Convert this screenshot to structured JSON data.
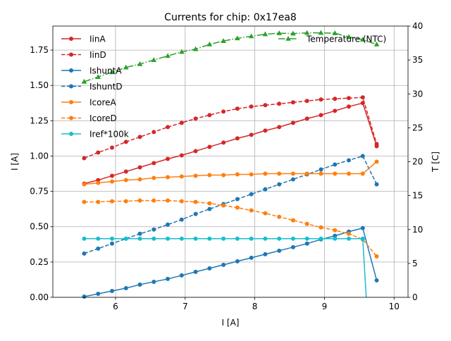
{
  "chart_data": {
    "type": "line",
    "title": "Currents for chip: 0x17ea8",
    "xlabel": "I [A]",
    "ylabel": "I [A]",
    "y2label": "T [C]",
    "xlim": [
      5.1,
      10.2
    ],
    "ylim": [
      0,
      1.92
    ],
    "y2lim": [
      0,
      40
    ],
    "xticks": [
      "6",
      "7",
      "8",
      "9",
      "10"
    ],
    "yticks": [
      "0.00",
      "0.25",
      "0.50",
      "0.75",
      "1.00",
      "1.25",
      "1.50",
      "1.75"
    ],
    "y2ticks": [
      "0",
      "5",
      "10",
      "15",
      "20",
      "25",
      "30",
      "35",
      "40"
    ],
    "grid": true,
    "legend_position": "upper-left",
    "legend2_position": "upper-right",
    "x": [
      5.55,
      5.75,
      5.95,
      6.15,
      6.35,
      6.55,
      6.75,
      6.95,
      7.15,
      7.35,
      7.55,
      7.75,
      7.95,
      8.15,
      8.35,
      8.55,
      8.75,
      8.95,
      9.15,
      9.35,
      9.55,
      9.75
    ],
    "series": [
      {
        "name": "IinA",
        "color": "#d62728",
        "style": "solid",
        "marker": "circle",
        "axis": "left",
        "values": [
          0.805,
          0.83,
          0.86,
          0.89,
          0.92,
          0.95,
          0.98,
          1.005,
          1.035,
          1.065,
          1.095,
          1.125,
          1.15,
          1.18,
          1.205,
          1.235,
          1.265,
          1.29,
          1.32,
          1.35,
          1.375,
          1.07
        ]
      },
      {
        "name": "IinD",
        "color": "#d62728",
        "style": "dashed",
        "marker": "circle",
        "axis": "left",
        "values": [
          0.985,
          1.025,
          1.06,
          1.1,
          1.135,
          1.17,
          1.205,
          1.235,
          1.265,
          1.29,
          1.315,
          1.335,
          1.35,
          1.36,
          1.37,
          1.38,
          1.39,
          1.4,
          1.405,
          1.41,
          1.415,
          1.085
        ]
      },
      {
        "name": "IshuntA",
        "color": "#1f77b4",
        "style": "solid",
        "marker": "circle",
        "axis": "left",
        "values": [
          0.005,
          0.025,
          0.045,
          0.065,
          0.09,
          0.11,
          0.13,
          0.155,
          0.18,
          0.205,
          0.23,
          0.255,
          0.28,
          0.305,
          0.33,
          0.355,
          0.38,
          0.41,
          0.435,
          0.465,
          0.49,
          0.12
        ]
      },
      {
        "name": "IshuntD",
        "color": "#1f77b4",
        "style": "dashed",
        "marker": "circle",
        "axis": "left",
        "values": [
          0.31,
          0.345,
          0.38,
          0.415,
          0.45,
          0.48,
          0.515,
          0.55,
          0.59,
          0.625,
          0.66,
          0.695,
          0.73,
          0.765,
          0.8,
          0.835,
          0.87,
          0.905,
          0.94,
          0.97,
          1.0,
          0.8
        ]
      },
      {
        "name": "IcoreA",
        "color": "#ff7f0e",
        "style": "solid",
        "marker": "circle",
        "axis": "left",
        "values": [
          0.8,
          0.81,
          0.82,
          0.83,
          0.835,
          0.845,
          0.85,
          0.855,
          0.86,
          0.865,
          0.865,
          0.87,
          0.87,
          0.875,
          0.875,
          0.875,
          0.875,
          0.875,
          0.875,
          0.875,
          0.875,
          0.96
        ]
      },
      {
        "name": "IcoreD",
        "color": "#ff7f0e",
        "style": "dashed",
        "marker": "circle",
        "axis": "left",
        "values": [
          0.675,
          0.675,
          0.68,
          0.68,
          0.685,
          0.685,
          0.685,
          0.68,
          0.675,
          0.665,
          0.65,
          0.635,
          0.615,
          0.595,
          0.57,
          0.545,
          0.52,
          0.495,
          0.475,
          0.45,
          0.41,
          0.29
        ]
      },
      {
        "name": "Iref*100k",
        "color": "#17becf",
        "style": "solid",
        "marker": "circle",
        "axis": "left",
        "values": [
          0.415,
          0.415,
          0.415,
          0.415,
          0.415,
          0.415,
          0.415,
          0.415,
          0.415,
          0.415,
          0.415,
          0.415,
          0.415,
          0.415,
          0.415,
          0.415,
          0.415,
          0.415,
          0.415,
          0.415,
          0.415,
          null
        ],
        "drop_to": {
          "x": 9.6,
          "y": 0
        }
      },
      {
        "name": "Temperature (NTC)",
        "color": "#2ca02c",
        "style": "dashdot",
        "marker": "triangle",
        "axis": "right",
        "values": [
          31.8,
          32.5,
          33.2,
          33.9,
          34.4,
          35.0,
          35.6,
          36.2,
          36.6,
          37.3,
          37.8,
          38.2,
          38.5,
          38.8,
          38.95,
          38.9,
          39.0,
          39.0,
          38.95,
          38.4,
          38.0,
          37.3
        ]
      }
    ]
  }
}
